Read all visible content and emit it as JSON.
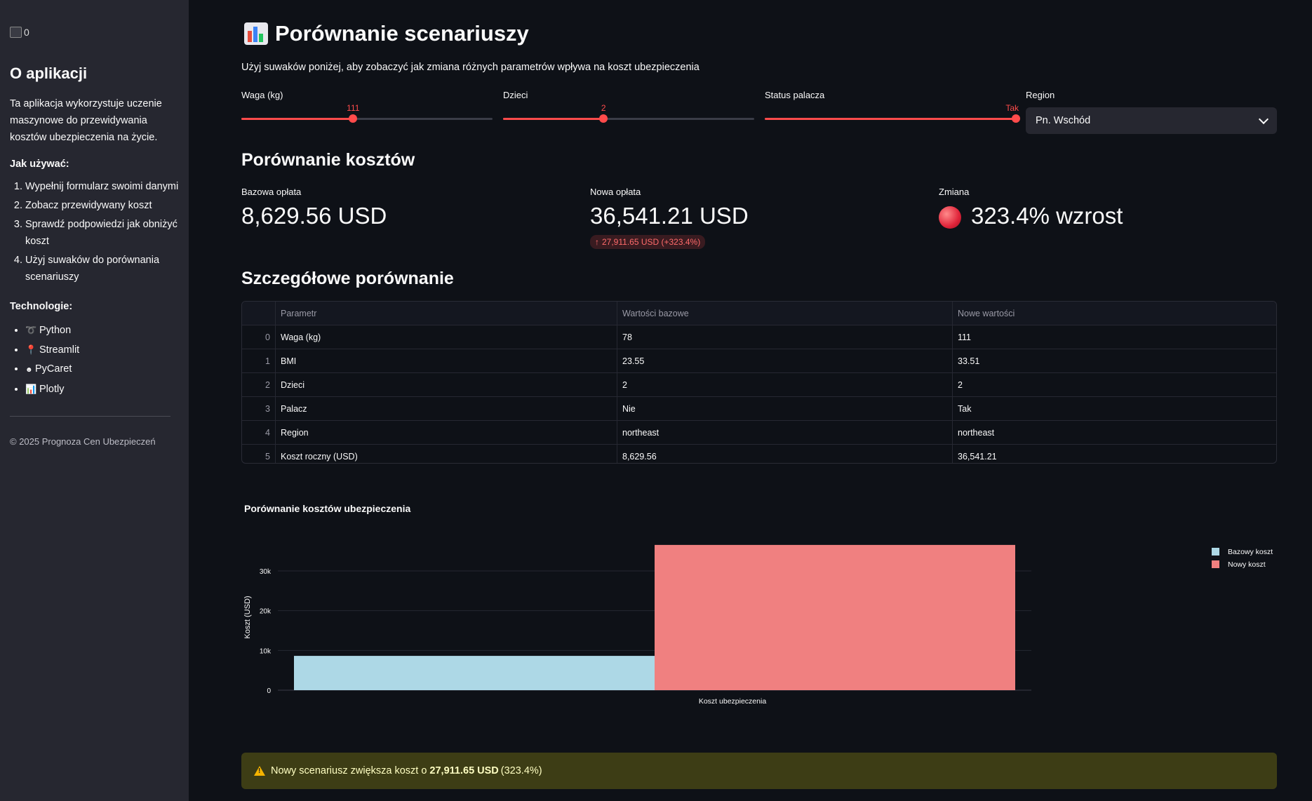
{
  "sidebar": {
    "logo_alt": "0",
    "title": "O aplikacji",
    "description": "Ta aplikacja wykorzystuje uczenie maszynowe do przewidywania kosztów ubezpieczenia na życie.",
    "howto_title": "Jak używać:",
    "steps": [
      "Wypełnij formularz swoimi danymi",
      "Zobacz przewidywany koszt",
      "Sprawdź podpowiedzi jak obniżyć koszt",
      "Użyj suwaków do porównania scenariuszy"
    ],
    "tech_title": "Technologie:",
    "technologies": [
      "Python",
      "Streamlit",
      "PyCaret",
      "Plotly"
    ],
    "footer": "© 2025 Prognoza Cen Ubezpieczeń"
  },
  "main": {
    "title": "Porównanie scenariuszy",
    "caption": "Użyj suwaków poniżej, aby zobaczyć jak zmiana różnych parametrów wpływa na koszt ubezpieczenia",
    "sliders": [
      {
        "label": "Waga (kg)",
        "value": "111",
        "fraction": 0.445
      },
      {
        "label": "Dzieci",
        "value": "2",
        "fraction": 0.4
      },
      {
        "label": "Status palacza",
        "value": "Tak",
        "fraction": 1.0
      }
    ],
    "region": {
      "label": "Region",
      "selected": "Pn. Wschód"
    },
    "cost_section_title": "Porównanie kosztów",
    "metrics": {
      "base_label": "Bazowa opłata",
      "base_value": "8,629.56 USD",
      "new_label": "Nowa opłata",
      "new_value": "36,541.21 USD",
      "new_delta": "27,911.65 USD (+323.4%)",
      "change_label": "Zmiana",
      "change_value": "323.4% wzrost"
    },
    "detail_title": "Szczegółowe porównanie",
    "table": {
      "headers": [
        "",
        "Parametr",
        "Wartości bazowe",
        "Nowe wartości"
      ],
      "rows": [
        [
          "0",
          "Waga (kg)",
          "78",
          "111"
        ],
        [
          "1",
          "BMI",
          "23.55",
          "33.51"
        ],
        [
          "2",
          "Dzieci",
          "2",
          "2"
        ],
        [
          "3",
          "Palacz",
          "Nie",
          "Tak"
        ],
        [
          "4",
          "Region",
          "northeast",
          "northeast"
        ],
        [
          "5",
          "Koszt roczny (USD)",
          "8,629.56",
          "36,541.21"
        ]
      ]
    },
    "alert": {
      "prefix": "Nowy scenariusz zwiększa koszt o ",
      "amount": "27,911.65 USD",
      "suffix": " (323.4%)"
    }
  },
  "colors": {
    "accent": "#ff4b4b",
    "base_bar": "#add8e6",
    "new_bar": "#f08080"
  },
  "chart_data": {
    "type": "bar",
    "title": "Porównanie kosztów ubezpieczenia",
    "categories": [
      "Koszt ubezpieczenia"
    ],
    "series": [
      {
        "name": "Bazowy koszt",
        "values": [
          8629.56
        ],
        "color": "#add8e6"
      },
      {
        "name": "Nowy koszt",
        "values": [
          36541.21
        ],
        "color": "#f08080"
      }
    ],
    "xlabel": "Koszt ubezpieczenia",
    "ylabel": "Koszt (USD)",
    "ylim": [
      0,
      38465
    ],
    "yticks": [
      0,
      10000,
      20000,
      30000
    ],
    "ytick_labels": [
      "0",
      "10k",
      "20k",
      "30k"
    ],
    "grid": true,
    "legend": "top-right"
  }
}
